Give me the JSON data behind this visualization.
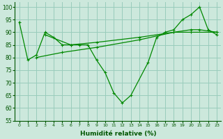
{
  "xlabel": "Humidité relative (%)",
  "bg_color": "#cce8dc",
  "grid_color": "#99ccbb",
  "line_color": "#008800",
  "ylim": [
    55,
    102
  ],
  "xlim": [
    -0.5,
    23.5
  ],
  "yticks": [
    55,
    60,
    65,
    70,
    75,
    80,
    85,
    90,
    95,
    100
  ],
  "xticks": [
    0,
    1,
    2,
    3,
    4,
    5,
    6,
    7,
    8,
    9,
    10,
    11,
    12,
    13,
    14,
    15,
    16,
    17,
    18,
    19,
    20,
    21,
    22,
    23
  ],
  "line1_x": [
    0,
    1,
    2,
    3,
    4,
    5,
    6,
    7,
    8,
    9,
    10,
    11,
    12,
    13,
    15,
    16,
    17,
    18,
    19,
    20,
    21,
    22,
    23
  ],
  "line1_y": [
    94,
    79,
    81,
    90,
    88,
    85,
    85,
    85,
    85,
    79,
    74,
    66,
    62,
    65,
    78,
    88,
    90,
    91,
    95,
    97,
    100,
    91,
    89
  ],
  "line2_x": [
    2,
    5,
    9,
    14,
    18,
    20,
    23
  ],
  "line2_y": [
    80,
    82,
    84,
    87,
    90,
    90,
    90
  ],
  "line3_x": [
    3,
    6,
    9,
    14,
    18,
    20,
    21,
    23
  ],
  "line3_y": [
    89,
    85,
    86,
    88,
    90,
    91,
    91,
    90
  ]
}
